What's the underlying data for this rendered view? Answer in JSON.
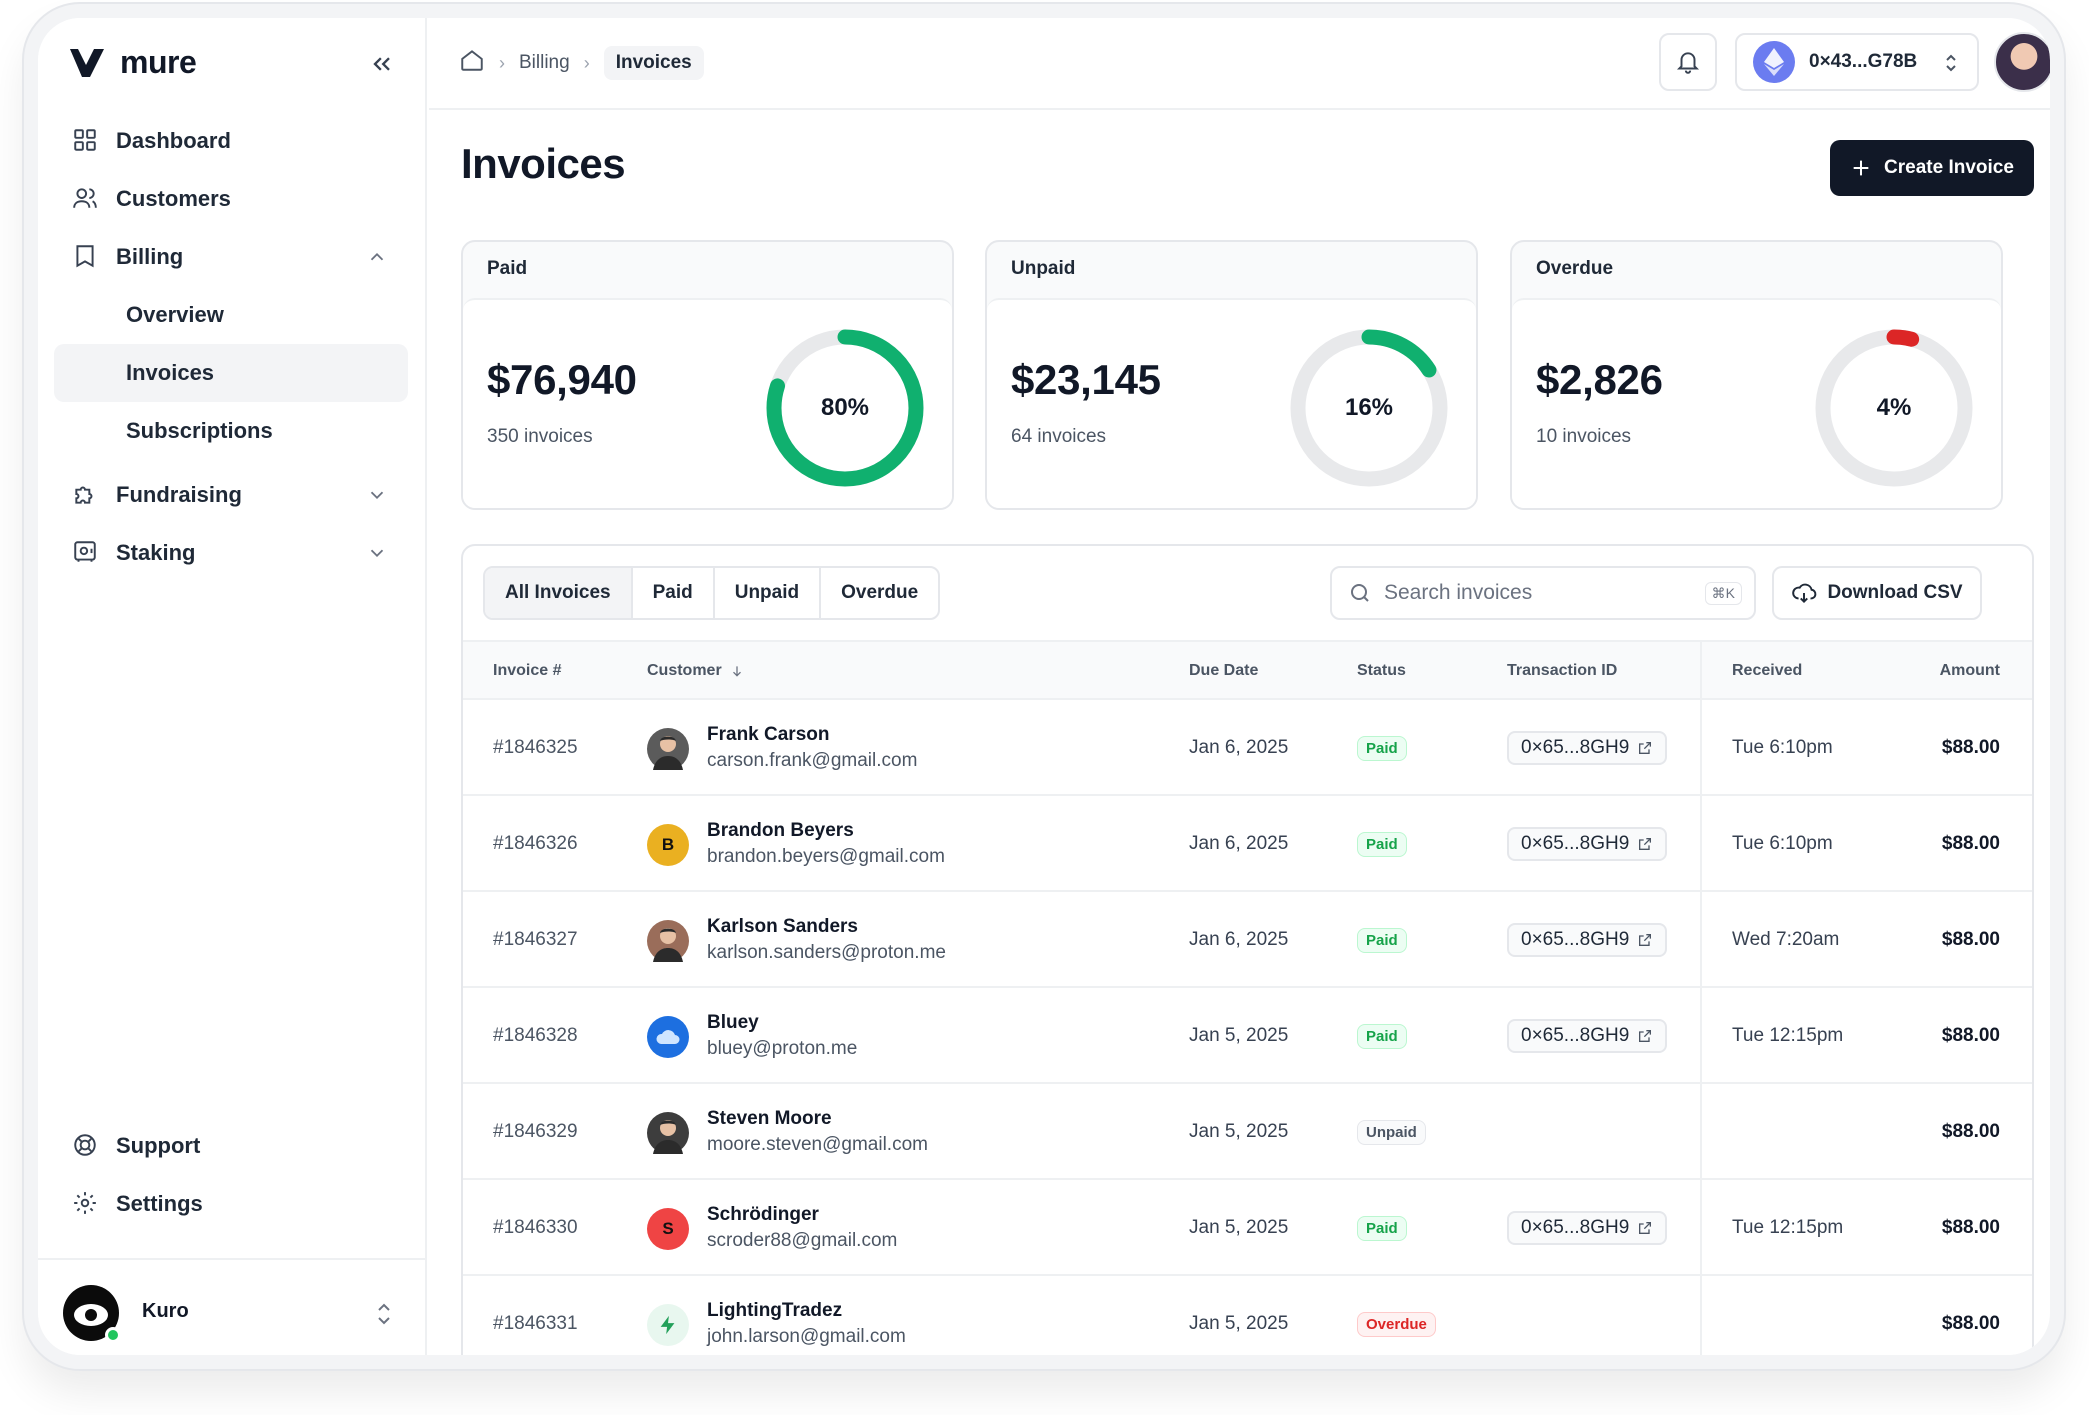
{
  "brand": {
    "name": "mure"
  },
  "sidebar": {
    "items": [
      {
        "label": "Dashboard",
        "icon": "grid-icon"
      },
      {
        "label": "Customers",
        "icon": "users-icon"
      },
      {
        "label": "Billing",
        "icon": "book-icon",
        "expanded": true,
        "children": [
          {
            "label": "Overview"
          },
          {
            "label": "Invoices",
            "active": true
          },
          {
            "label": "Subscriptions"
          }
        ]
      },
      {
        "label": "Fundraising",
        "icon": "puzzle-icon"
      },
      {
        "label": "Staking",
        "icon": "safe-icon"
      }
    ],
    "bottom": [
      {
        "label": "Support",
        "icon": "lifebuoy-icon"
      },
      {
        "label": "Settings",
        "icon": "gear-icon"
      }
    ],
    "user": {
      "name": "Kuro",
      "online": true
    }
  },
  "topbar": {
    "breadcrumb": [
      "Billing",
      "Invoices"
    ],
    "wallet": "0×43...G78B"
  },
  "page": {
    "title": "Invoices",
    "create_label": "Create Invoice"
  },
  "summary": [
    {
      "title": "Paid",
      "amount": "$76,940",
      "count": "350 invoices",
      "percent_label": "80%",
      "percent": 80,
      "color": "#10b06f"
    },
    {
      "title": "Unpaid",
      "amount": "$23,145",
      "count": "64 invoices",
      "percent_label": "16%",
      "percent": 16,
      "color": "#10b06f"
    },
    {
      "title": "Overdue",
      "amount": "$2,826",
      "count": "10 invoices",
      "percent_label": "4%",
      "percent": 4,
      "color": "#dc2626"
    }
  ],
  "filters": [
    "All Invoices",
    "Paid",
    "Unpaid",
    "Overdue"
  ],
  "search": {
    "placeholder": "Search invoices",
    "shortcut": "⌘K"
  },
  "download_label": "Download CSV",
  "table": {
    "headers": {
      "invoice": "Invoice #",
      "customer": "Customer",
      "due": "Due Date",
      "status": "Status",
      "tx": "Transaction ID",
      "received": "Received",
      "amount": "Amount"
    },
    "rows": [
      {
        "invoice": "#1846325",
        "name": "Frank Carson",
        "email": "carson.frank@gmail.com",
        "due": "Jan 6, 2025",
        "status": "Paid",
        "tx": "0×65...8GH9",
        "received": "Tue 6:10pm",
        "amount": "$88.00",
        "avatar_letter": "",
        "avatar_color": "#5b5b5b"
      },
      {
        "invoice": "#1846326",
        "name": "Brandon Beyers",
        "email": "brandon.beyers@gmail.com",
        "due": "Jan 6, 2025",
        "status": "Paid",
        "tx": "0×65...8GH9",
        "received": "Tue 6:10pm",
        "amount": "$88.00",
        "avatar_letter": "B",
        "avatar_color": "#eab021"
      },
      {
        "invoice": "#1846327",
        "name": "Karlson Sanders",
        "email": "karlson.sanders@proton.me",
        "due": "Jan 6, 2025",
        "status": "Paid",
        "tx": "0×65...8GH9",
        "received": "Wed 7:20am",
        "amount": "$88.00",
        "avatar_letter": "",
        "avatar_color": "#9a6d5a"
      },
      {
        "invoice": "#1846328",
        "name": "Bluey",
        "email": "bluey@proton.me",
        "due": "Jan 5, 2025",
        "status": "Paid",
        "tx": "0×65...8GH9",
        "received": "Tue 12:15pm",
        "amount": "$88.00",
        "avatar_letter": "",
        "avatar_color": "#1d6fe0"
      },
      {
        "invoice": "#1846329",
        "name": "Steven Moore",
        "email": "moore.steven@gmail.com",
        "due": "Jan 5, 2025",
        "status": "Unpaid",
        "tx": "",
        "received": "",
        "amount": "$88.00",
        "avatar_letter": "",
        "avatar_color": "#3d3d3d"
      },
      {
        "invoice": "#1846330",
        "name": "Schrödinger",
        "email": "scroder88@gmail.com",
        "due": "Jan 5, 2025",
        "status": "Paid",
        "tx": "0×65...8GH9",
        "received": "Tue 12:15pm",
        "amount": "$88.00",
        "avatar_letter": "S",
        "avatar_color": "#ef4444"
      },
      {
        "invoice": "#1846331",
        "name": "LightingTradez",
        "email": "john.larson@gmail.com",
        "due": "Jan 5, 2025",
        "status": "Overdue",
        "tx": "",
        "received": "",
        "amount": "$88.00",
        "avatar_letter": "",
        "avatar_color": "#e8f7ef"
      }
    ]
  }
}
